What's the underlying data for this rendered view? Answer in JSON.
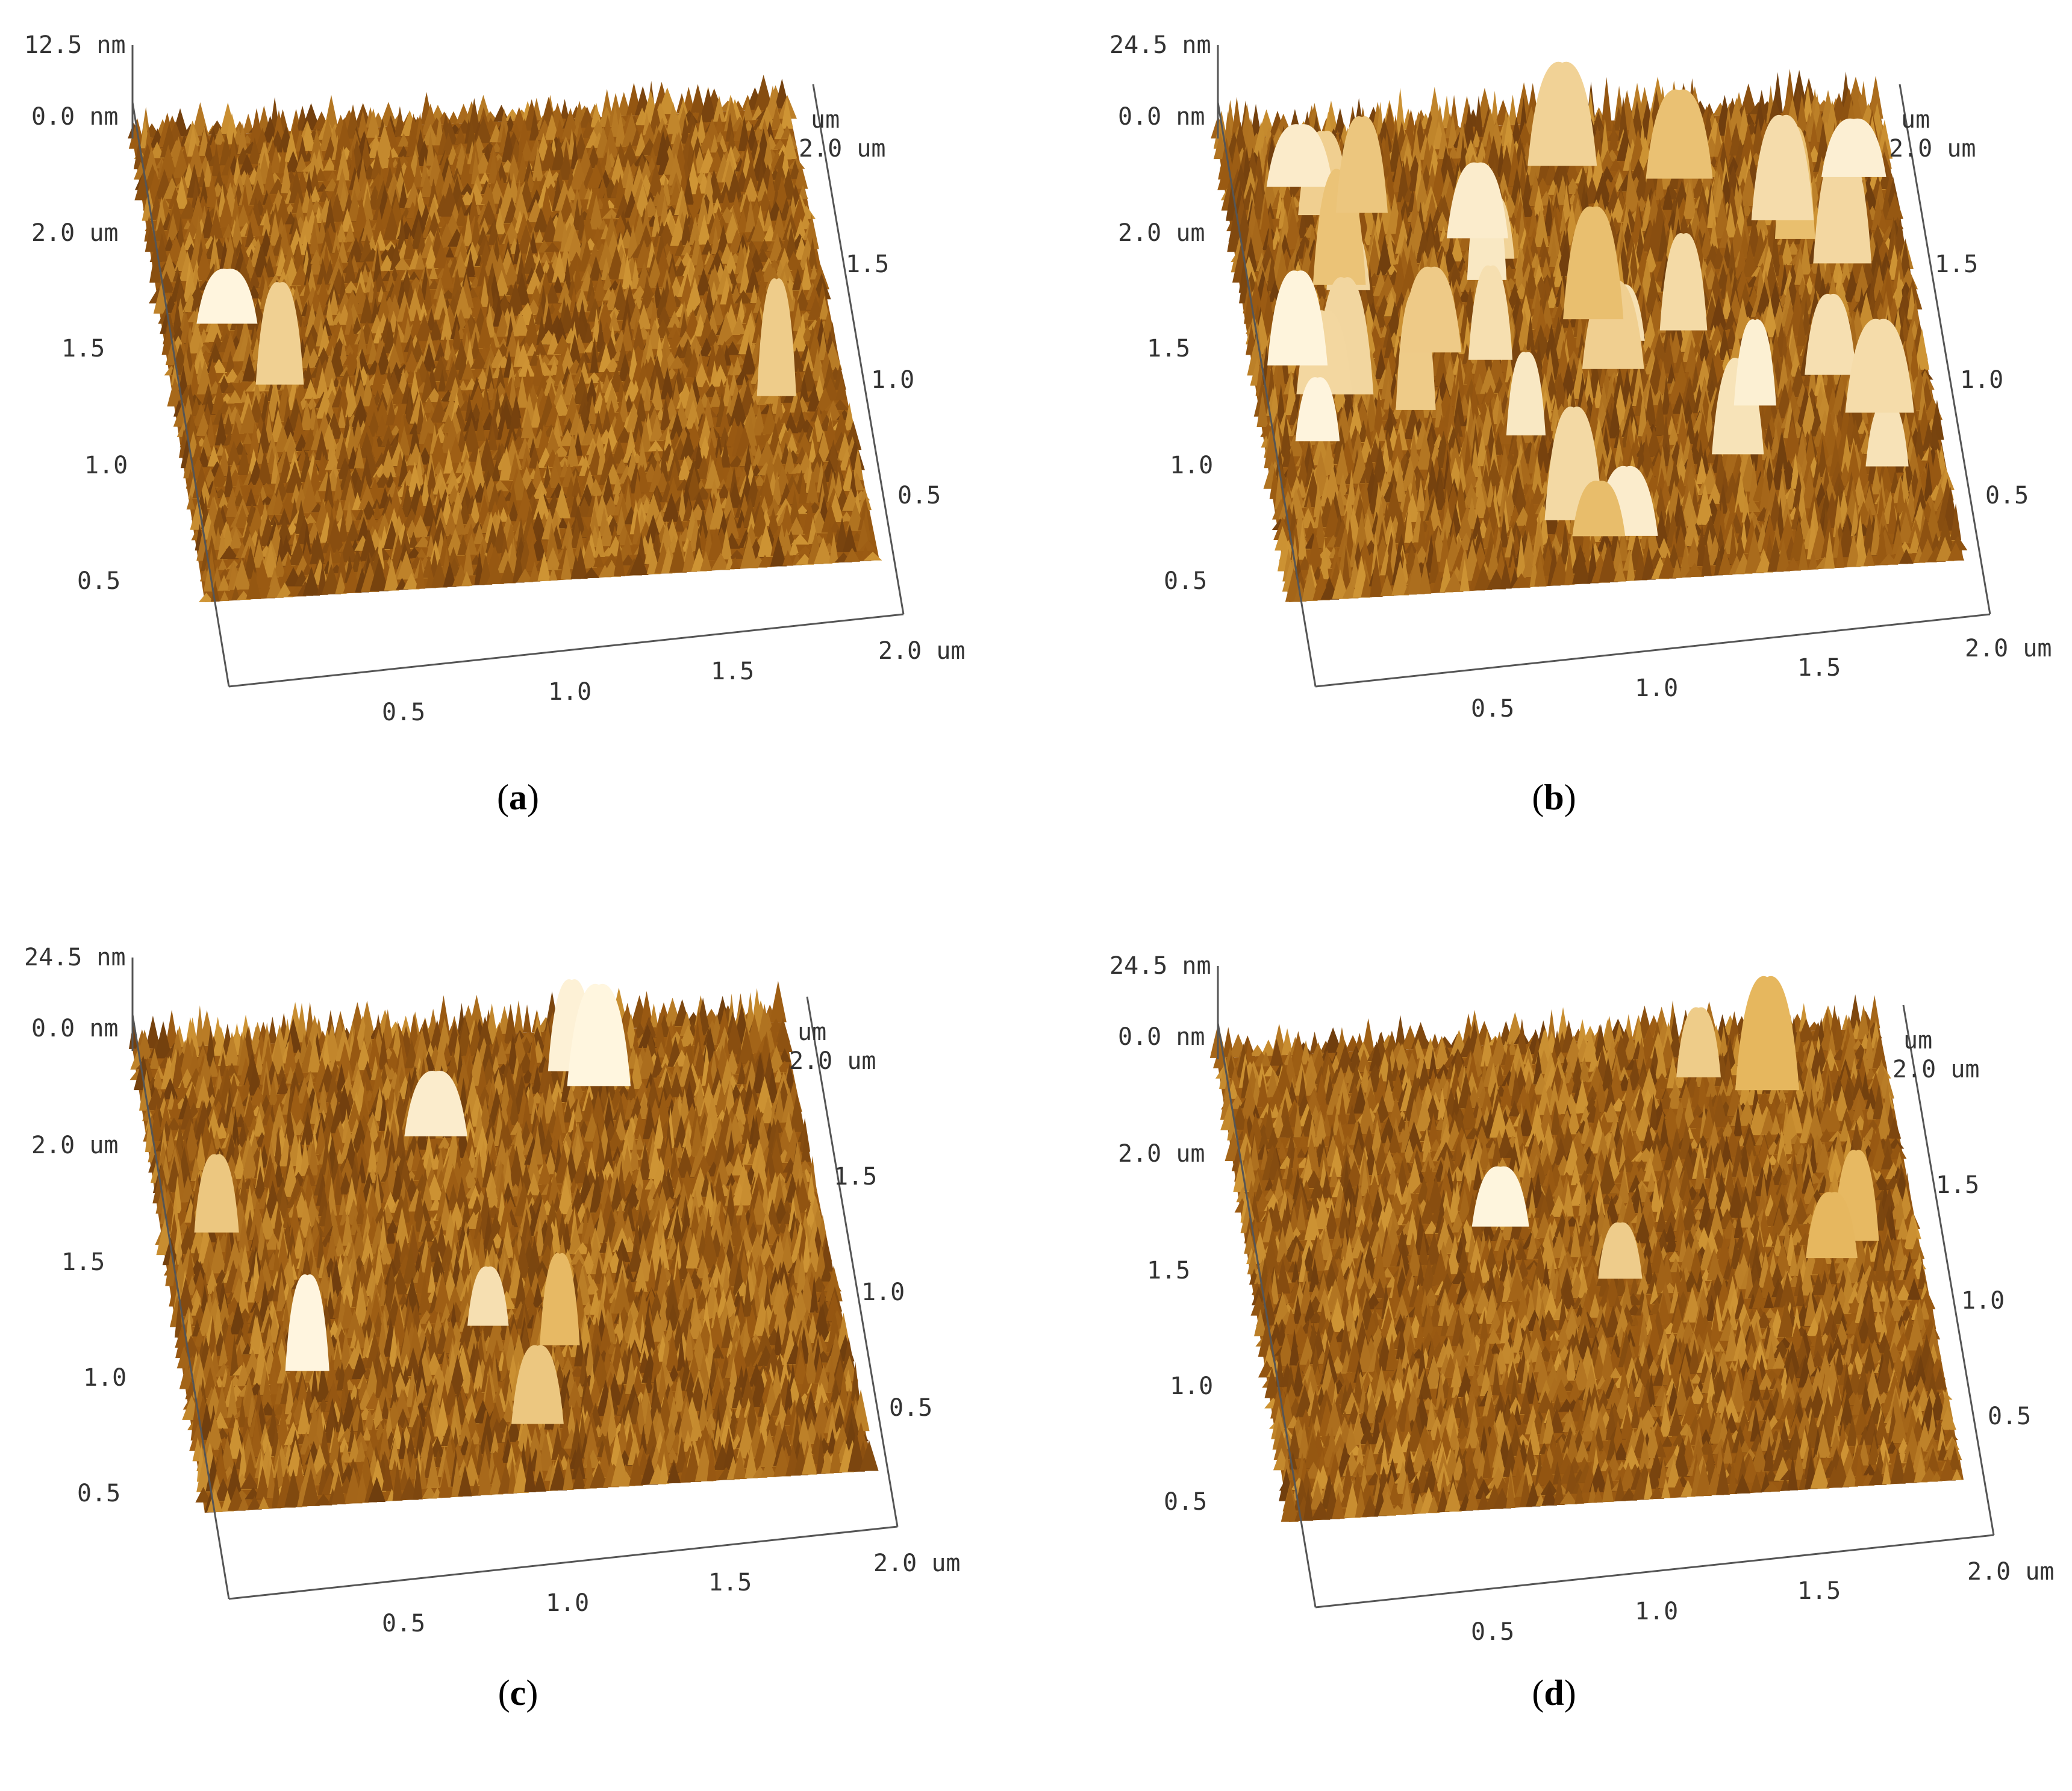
{
  "figure": {
    "panels": [
      {
        "id": "a",
        "caption_open": "(",
        "caption_letter": "a",
        "caption_close": ")",
        "z_max_label": "12.5 nm",
        "z_min_label": "0.0 nm",
        "x_axis_ticks": [
          "0.5",
          "1.0",
          "1.5",
          "2.0 um"
        ],
        "y_axis_ticks": [
          "0.5",
          "1.0",
          "1.5",
          "2.0 um"
        ],
        "right_axis_ticks": [
          "0.5",
          "1.0",
          "1.5",
          "2.0 um"
        ],
        "right_unit": "um"
      },
      {
        "id": "b",
        "caption_open": "(",
        "caption_letter": "b",
        "caption_close": ")",
        "z_max_label": "24.5 nm",
        "z_min_label": "0.0 nm",
        "x_axis_ticks": [
          "0.5",
          "1.0",
          "1.5",
          "2.0 um"
        ],
        "y_axis_ticks": [
          "0.5",
          "1.0",
          "1.5",
          "2.0 um"
        ],
        "right_axis_ticks": [
          "0.5",
          "1.0",
          "1.5",
          "2.0 um"
        ],
        "right_unit": "um"
      },
      {
        "id": "c",
        "caption_open": "(",
        "caption_letter": "c",
        "caption_close": ")",
        "z_max_label": "24.5 nm",
        "z_min_label": "0.0 nm",
        "x_axis_ticks": [
          "0.5",
          "1.0",
          "1.5",
          "2.0 um"
        ],
        "y_axis_ticks": [
          "0.5",
          "1.0",
          "1.5",
          "2.0 um"
        ],
        "right_axis_ticks": [
          "0.5",
          "1.0",
          "1.5",
          "2.0 um"
        ],
        "right_unit": "um"
      },
      {
        "id": "d",
        "caption_open": "(",
        "caption_letter": "d",
        "caption_close": ")",
        "z_max_label": "24.5 nm",
        "z_min_label": "0.0 nm",
        "x_axis_ticks": [
          "0.5",
          "1.0",
          "1.5",
          "2.0 um"
        ],
        "y_axis_ticks": [
          "0.5",
          "1.0",
          "1.5",
          "2.0 um"
        ],
        "right_axis_ticks": [
          "0.5",
          "1.0",
          "1.5",
          "2.0 um"
        ],
        "right_unit": "um"
      }
    ],
    "colors": {
      "surface_dark": "#3a1a08",
      "surface_mid": "#9a5a12",
      "surface_light": "#e0a840",
      "surface_peak": "#fff6e0",
      "axis": "#555555"
    }
  }
}
